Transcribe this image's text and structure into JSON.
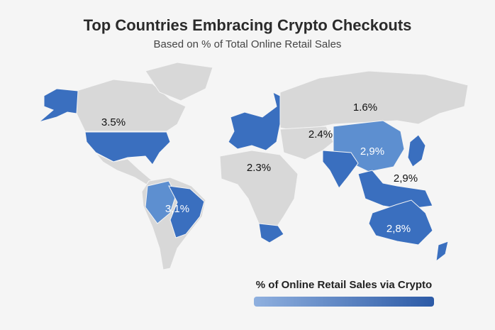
{
  "header": {
    "title": "Top Countries Embracing Crypto Checkouts",
    "subtitle": "Based on % of Total Online Retail Sales"
  },
  "regions": [
    {
      "label": "3.5%"
    },
    {
      "label": "1.6%"
    },
    {
      "label": "2.4%"
    },
    {
      "label": "2.3%"
    },
    {
      "label": "2,9%"
    },
    {
      "label": "2,9%"
    },
    {
      "label": "3,1%"
    },
    {
      "label": "2,8%"
    }
  ],
  "legend": {
    "title": "% of Online Retail Sales via Crypto"
  }
}
